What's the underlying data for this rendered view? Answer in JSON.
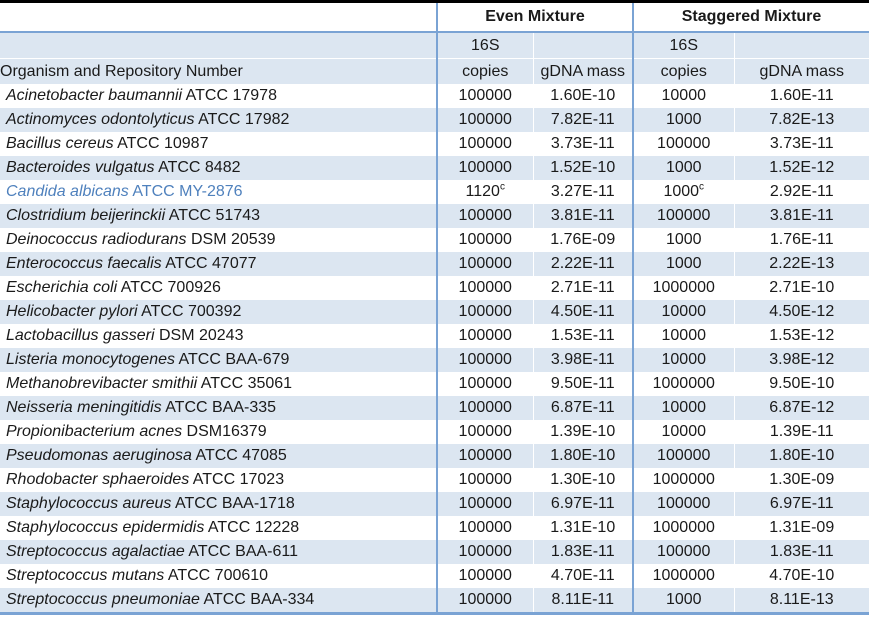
{
  "table": {
    "group_headers": [
      "Even Mixture",
      "Staggered Mixture"
    ],
    "headers": {
      "organism": "Organism and Repository Number",
      "s16": "16S",
      "copies": "copies",
      "gdna": "gDNA mass"
    },
    "rows": [
      {
        "organism": "Acinetobacter baumannii",
        "repository": "ATCC 17978",
        "even_16s": "100000",
        "even_16s_sup": "",
        "even_gdna": "1.60E-10",
        "staggered_16s": "10000",
        "staggered_16s_sup": "",
        "staggered_gdna": "1.60E-11",
        "highlight": false
      },
      {
        "organism": "Actinomyces odontolyticus",
        "repository": "ATCC 17982",
        "even_16s": "100000",
        "even_16s_sup": "",
        "even_gdna": "7.82E-11",
        "staggered_16s": "1000",
        "staggered_16s_sup": "",
        "staggered_gdna": "7.82E-13",
        "highlight": false
      },
      {
        "organism": "Bacillus cereus",
        "repository": "ATCC 10987",
        "even_16s": "100000",
        "even_16s_sup": "",
        "even_gdna": "3.73E-11",
        "staggered_16s": "100000",
        "staggered_16s_sup": "",
        "staggered_gdna": "3.73E-11",
        "highlight": false
      },
      {
        "organism": "Bacteroides vulgatus",
        "repository": "ATCC 8482",
        "even_16s": "100000",
        "even_16s_sup": "",
        "even_gdna": "1.52E-10",
        "staggered_16s": "1000",
        "staggered_16s_sup": "",
        "staggered_gdna": "1.52E-12",
        "highlight": false
      },
      {
        "organism": "Candida albicans",
        "repository": "ATCC MY-2876",
        "even_16s": "1120",
        "even_16s_sup": "c",
        "even_gdna": "3.27E-11",
        "staggered_16s": "1000",
        "staggered_16s_sup": "c",
        "staggered_gdna": "2.92E-11",
        "highlight": true
      },
      {
        "organism": "Clostridium beijerinckii",
        "repository": "ATCC 51743",
        "even_16s": "100000",
        "even_16s_sup": "",
        "even_gdna": "3.81E-11",
        "staggered_16s": "100000",
        "staggered_16s_sup": "",
        "staggered_gdna": "3.81E-11",
        "highlight": false
      },
      {
        "organism": "Deinococcus radiodurans",
        "repository": "DSM 20539",
        "even_16s": "100000",
        "even_16s_sup": "",
        "even_gdna": "1.76E-09",
        "staggered_16s": "1000",
        "staggered_16s_sup": "",
        "staggered_gdna": "1.76E-11",
        "highlight": false
      },
      {
        "organism": "Enterococcus faecalis",
        "repository": "ATCC 47077",
        "even_16s": "100000",
        "even_16s_sup": "",
        "even_gdna": "2.22E-11",
        "staggered_16s": "1000",
        "staggered_16s_sup": "",
        "staggered_gdna": "2.22E-13",
        "highlight": false
      },
      {
        "organism": "Escherichia coli",
        "repository": "ATCC 700926",
        "even_16s": "100000",
        "even_16s_sup": "",
        "even_gdna": "2.71E-11",
        "staggered_16s": "1000000",
        "staggered_16s_sup": "",
        "staggered_gdna": "2.71E-10",
        "highlight": false
      },
      {
        "organism": "Helicobacter pylori",
        "repository": "ATCC 700392",
        "even_16s": "100000",
        "even_16s_sup": "",
        "even_gdna": "4.50E-11",
        "staggered_16s": "10000",
        "staggered_16s_sup": "",
        "staggered_gdna": "4.50E-12",
        "highlight": false
      },
      {
        "organism": "Lactobacillus gasseri",
        "repository": "DSM 20243",
        "even_16s": "100000",
        "even_16s_sup": "",
        "even_gdna": "1.53E-11",
        "staggered_16s": "10000",
        "staggered_16s_sup": "",
        "staggered_gdna": "1.53E-12",
        "highlight": false
      },
      {
        "organism": "Listeria monocytogenes",
        "repository": "ATCC BAA-679",
        "even_16s": "100000",
        "even_16s_sup": "",
        "even_gdna": "3.98E-11",
        "staggered_16s": "10000",
        "staggered_16s_sup": "",
        "staggered_gdna": "3.98E-12",
        "highlight": false
      },
      {
        "organism": "Methanobrevibacter smithii",
        "repository": "ATCC 35061",
        "even_16s": "100000",
        "even_16s_sup": "",
        "even_gdna": "9.50E-11",
        "staggered_16s": "1000000",
        "staggered_16s_sup": "",
        "staggered_gdna": "9.50E-10",
        "highlight": false
      },
      {
        "organism": "Neisseria meningitidis",
        "repository": "ATCC BAA-335",
        "even_16s": "100000",
        "even_16s_sup": "",
        "even_gdna": "6.87E-11",
        "staggered_16s": "10000",
        "staggered_16s_sup": "",
        "staggered_gdna": "6.87E-12",
        "highlight": false
      },
      {
        "organism": "Propionibacterium acnes",
        "repository": "DSM16379",
        "even_16s": "100000",
        "even_16s_sup": "",
        "even_gdna": "1.39E-10",
        "staggered_16s": "10000",
        "staggered_16s_sup": "",
        "staggered_gdna": "1.39E-11",
        "highlight": false
      },
      {
        "organism": "Pseudomonas aeruginosa",
        "repository": "ATCC 47085",
        "even_16s": "100000",
        "even_16s_sup": "",
        "even_gdna": "1.80E-10",
        "staggered_16s": "100000",
        "staggered_16s_sup": "",
        "staggered_gdna": "1.80E-10",
        "highlight": false
      },
      {
        "organism": "Rhodobacter sphaeroides",
        "repository": "ATCC 17023",
        "even_16s": "100000",
        "even_16s_sup": "",
        "even_gdna": "1.30E-10",
        "staggered_16s": "1000000",
        "staggered_16s_sup": "",
        "staggered_gdna": "1.30E-09",
        "highlight": false
      },
      {
        "organism": "Staphylococcus aureus",
        "repository": "ATCC BAA-1718",
        "even_16s": "100000",
        "even_16s_sup": "",
        "even_gdna": "6.97E-11",
        "staggered_16s": "100000",
        "staggered_16s_sup": "",
        "staggered_gdna": "6.97E-11",
        "highlight": false
      },
      {
        "organism": "Staphylococcus epidermidis",
        "repository": "ATCC 12228",
        "even_16s": "100000",
        "even_16s_sup": "",
        "even_gdna": "1.31E-10",
        "staggered_16s": "1000000",
        "staggered_16s_sup": "",
        "staggered_gdna": "1.31E-09",
        "highlight": false
      },
      {
        "organism": "Streptococcus agalactiae",
        "repository": "ATCC BAA-611",
        "even_16s": "100000",
        "even_16s_sup": "",
        "even_gdna": "1.83E-11",
        "staggered_16s": "100000",
        "staggered_16s_sup": "",
        "staggered_gdna": "1.83E-11",
        "highlight": false
      },
      {
        "organism": "Streptococcus mutans",
        "repository": "ATCC 700610",
        "even_16s": "100000",
        "even_16s_sup": "",
        "even_gdna": "4.70E-11",
        "staggered_16s": "1000000",
        "staggered_16s_sup": "",
        "staggered_gdna": "4.70E-10",
        "highlight": false
      },
      {
        "organism": "Streptococcus pneumoniae",
        "repository": "ATCC BAA-334",
        "even_16s": "100000",
        "even_16s_sup": "",
        "even_gdna": "8.11E-11",
        "staggered_16s": "1000",
        "staggered_16s_sup": "",
        "staggered_gdna": "8.11E-13",
        "highlight": false
      }
    ],
    "colors": {
      "stripe": "#dce6f1",
      "border_blue": "#7aa3d4",
      "border_top_black": "#000000",
      "highlight_text": "#4f81bd"
    }
  }
}
